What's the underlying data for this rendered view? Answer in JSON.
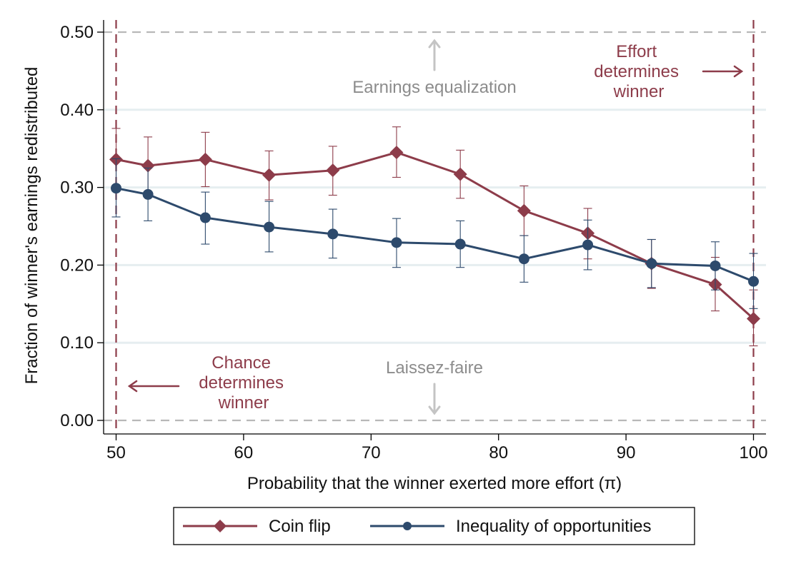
{
  "chart_data": {
    "type": "line",
    "xlabel": "Probability that the winner exerted more effort (π)",
    "ylabel": "Fraction of winner's earnings redistributed",
    "xlim": [
      49,
      101
    ],
    "ylim": [
      -0.01,
      0.54
    ],
    "xticks": [
      50,
      60,
      70,
      80,
      90,
      100
    ],
    "xtick_labels": [
      "50",
      "60",
      "70",
      "80",
      "90",
      "100"
    ],
    "yticks": [
      0.0,
      0.1,
      0.2,
      0.3,
      0.4,
      0.5
    ],
    "ytick_labels": [
      "0.00",
      "0.10",
      "0.20",
      "0.30",
      "0.40",
      "0.50"
    ],
    "grid": true,
    "legend_position": "bottom",
    "reference_lines": {
      "horizontal": [
        0.0,
        0.5
      ],
      "vertical": [
        50,
        100
      ]
    },
    "annotations": {
      "top_center": "Earnings equalization",
      "bottom_center": "Laissez-faire",
      "left": [
        "Chance",
        "determines",
        "winner"
      ],
      "right": [
        "Effort",
        "determines",
        "winner"
      ]
    },
    "series": [
      {
        "name": "Coin flip",
        "color": "#8d3c4a",
        "marker": "diamond",
        "x": [
          50,
          52.5,
          57,
          62,
          67,
          72,
          77,
          82,
          87,
          92,
          97,
          100
        ],
        "y": [
          0.336,
          0.328,
          0.336,
          0.316,
          0.322,
          0.345,
          0.317,
          0.27,
          0.241,
          0.202,
          0.175,
          0.131
        ],
        "ci_low": [
          0.296,
          0.29,
          0.301,
          0.284,
          0.29,
          0.313,
          0.286,
          0.238,
          0.208,
          0.17,
          0.141,
          0.096
        ],
        "ci_high": [
          0.376,
          0.365,
          0.371,
          0.347,
          0.353,
          0.378,
          0.348,
          0.302,
          0.273,
          0.233,
          0.21,
          0.168
        ]
      },
      {
        "name": "Inequality of opportunities",
        "color": "#2d4a6c",
        "marker": "circle",
        "x": [
          50,
          52.5,
          57,
          62,
          67,
          72,
          77,
          82,
          87,
          92,
          97,
          100
        ],
        "y": [
          0.299,
          0.291,
          0.261,
          0.249,
          0.24,
          0.229,
          0.227,
          0.208,
          0.226,
          0.202,
          0.199,
          0.179
        ],
        "ci_low": [
          0.262,
          0.257,
          0.227,
          0.217,
          0.209,
          0.197,
          0.197,
          0.178,
          0.194,
          0.171,
          0.168,
          0.144
        ],
        "ci_high": [
          0.337,
          0.325,
          0.294,
          0.282,
          0.272,
          0.26,
          0.257,
          0.238,
          0.258,
          0.233,
          0.23,
          0.215
        ]
      }
    ]
  }
}
